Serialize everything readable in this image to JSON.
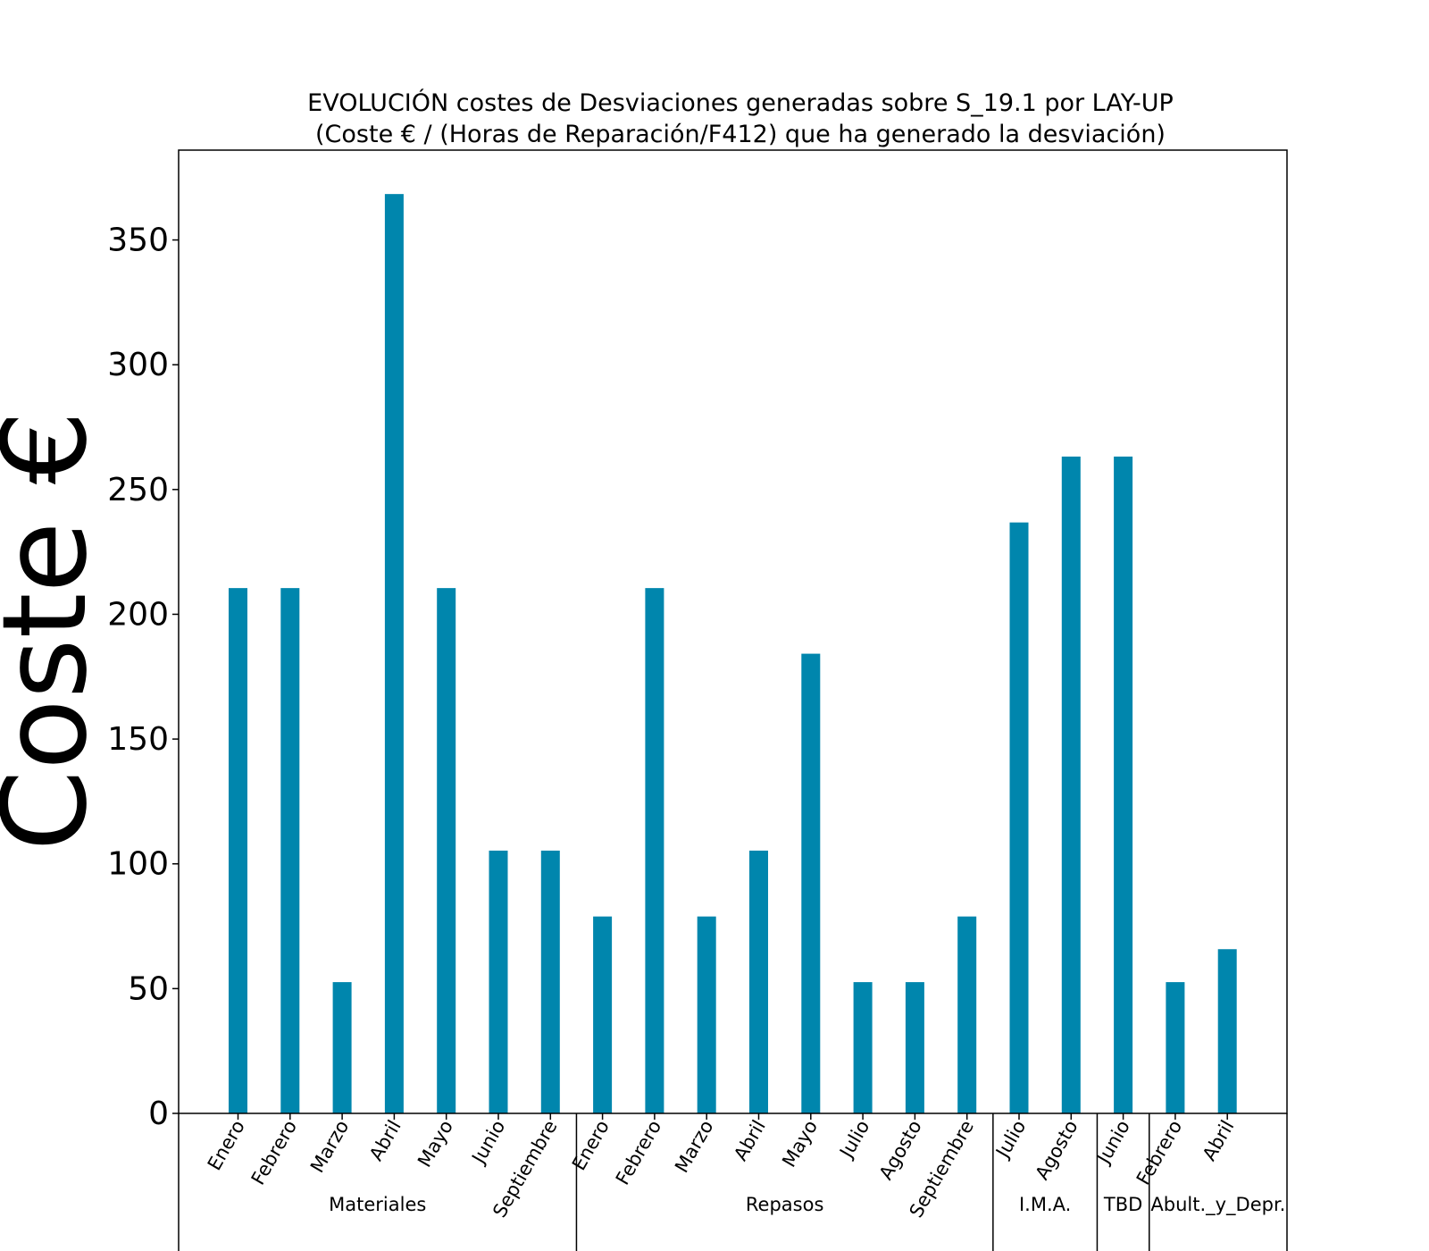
{
  "chart_data": {
    "type": "bar",
    "title_line1": "EVOLUCIÓN costes de Desviaciones  generadas  sobre S_19.1 por LAY-UP",
    "title_line2": "(Coste € / (Horas de Reparación/F412) que ha generado la desviación)",
    "xlabel": "",
    "ylabel": "Coste €",
    "ylim": [
      0,
      386
    ],
    "yticks": [
      0,
      50,
      100,
      150,
      200,
      250,
      300,
      350
    ],
    "bar_color": "#0086ad",
    "grid": false,
    "legend": "none",
    "categories": [
      "Enero",
      "Febrero",
      "Marzo",
      "Abril",
      "Mayo",
      "Junio",
      "Septiembre",
      "Enero",
      "Febrero",
      "Marzo",
      "Abril",
      "Mayo",
      "Julio",
      "Agosto",
      "Septiembre",
      "Julio",
      "Agosto",
      "Junio",
      "Febrero",
      "Abril"
    ],
    "values": [
      210.5,
      210.5,
      52.6,
      368.4,
      210.5,
      105.3,
      105.3,
      78.9,
      210.5,
      78.9,
      105.3,
      184.2,
      52.6,
      52.6,
      78.9,
      236.8,
      263.2,
      263.2,
      52.6,
      65.8
    ],
    "groups": [
      {
        "label": "Materiales",
        "start": 0,
        "end": 6
      },
      {
        "label": "Repasos",
        "start": 7,
        "end": 14
      },
      {
        "label": "I.M.A.",
        "start": 15,
        "end": 16
      },
      {
        "label": "TBD",
        "start": 17,
        "end": 17
      },
      {
        "label": "Abult._y_Depr.",
        "start": 18,
        "end": 19
      }
    ]
  }
}
